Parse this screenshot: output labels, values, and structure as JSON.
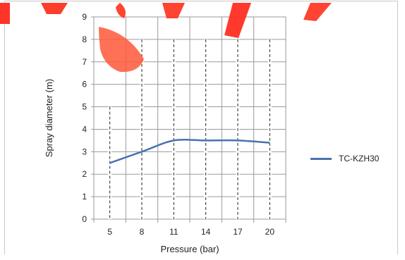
{
  "chart_data": {
    "type": "line",
    "title": "",
    "xlabel": "Pressure (bar)",
    "ylabel": "Spray diameter (m)",
    "x": [
      5,
      8,
      11,
      14,
      17,
      20
    ],
    "x_ticks": [
      "5",
      "8",
      "11",
      "14",
      "17",
      "20"
    ],
    "y_ticks": [
      "0",
      "1",
      "2",
      "3",
      "4",
      "5",
      "6",
      "7",
      "8",
      "9"
    ],
    "ylim": [
      0,
      9
    ],
    "grid": true,
    "legend_position": "right",
    "series": [
      {
        "name": "TC-KZH30",
        "color": "#4a72b0",
        "values": [
          2.5,
          3.0,
          3.5,
          3.5,
          3.5,
          3.4
        ]
      }
    ]
  },
  "watermark": {
    "color": "#ff3b2f",
    "description_text": "red brush-stroke watermark"
  }
}
